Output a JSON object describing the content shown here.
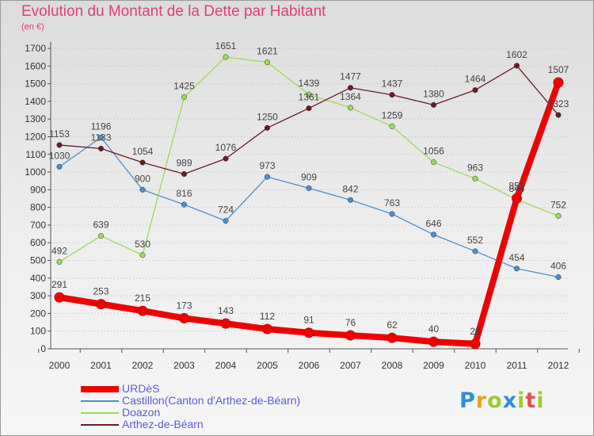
{
  "header": {
    "title": "Evolution du Montant de la Dette par Habitant",
    "unit": "(en €)"
  },
  "logo": {
    "text": "Proxiti",
    "colors": [
      "#2f8fd8",
      "#e8a020",
      "#9ccc30",
      "#2f8fd8",
      "#9ccc30",
      "#e05050",
      "#9ccc30"
    ]
  },
  "chart_data": {
    "type": "line",
    "title": "Evolution du Montant de la Dette par Habitant",
    "ylabel": "(en €)",
    "xlabel": "",
    "x": [
      "2000",
      "2001",
      "2002",
      "2003",
      "2004",
      "2005",
      "2006",
      "2007",
      "2008",
      "2009",
      "2010",
      "2011",
      "2012"
    ],
    "y_ticks": [
      0,
      100,
      200,
      300,
      400,
      500,
      600,
      700,
      800,
      900,
      1000,
      1100,
      1200,
      1300,
      1400,
      1500,
      1600,
      1700
    ],
    "ylim": [
      0,
      1700
    ],
    "grid": "horizontal dotted",
    "legend_placement": "bottom-left",
    "series": [
      {
        "name": "URDèS",
        "color": "#ee0000",
        "values": [
          291,
          253,
          215,
          173,
          143,
          112,
          91,
          76,
          62,
          40,
          28,
          851,
          1507
        ]
      },
      {
        "name": "Castillon(Canton d'Arthez-de-Béarn)",
        "color": "#4a8fcf",
        "values": [
          1030,
          1196,
          900,
          816,
          724,
          973,
          909,
          842,
          763,
          646,
          552,
          454,
          406
        ]
      },
      {
        "name": "Doazon",
        "color": "#99dd55",
        "values": [
          492,
          639,
          530,
          1425,
          1651,
          1621,
          1439,
          1364,
          1259,
          1056,
          963,
          844,
          752
        ]
      },
      {
        "name": "Arthez-de-Béarn",
        "color": "#6e1a26",
        "values": [
          1153,
          1133,
          1054,
          989,
          1076,
          1250,
          1361,
          1477,
          1437,
          1380,
          1464,
          1602,
          1323
        ]
      }
    ]
  }
}
